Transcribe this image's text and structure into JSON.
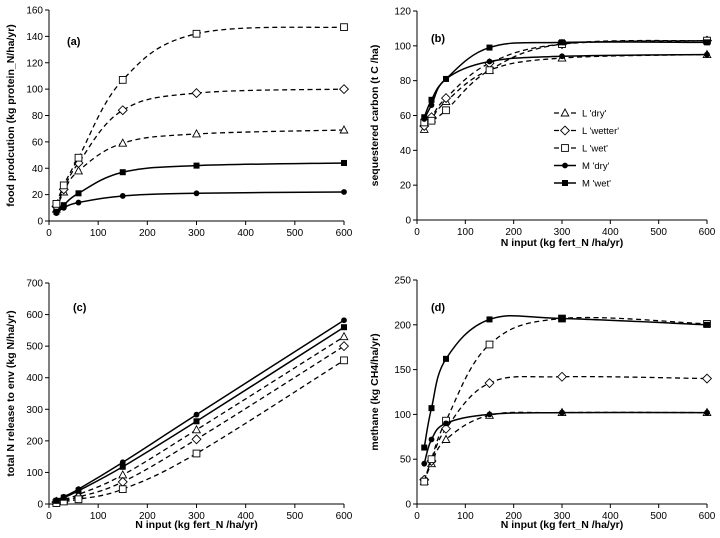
{
  "chart_data": [
    {
      "type": "line",
      "panel_label": "(a)",
      "xlabel": "",
      "ylabel": "food prodcution (kg protein_N/ha/yr)",
      "xlim": [
        0,
        600
      ],
      "ylim": [
        0,
        160
      ],
      "xticks": [
        0,
        100,
        200,
        300,
        400,
        500,
        600
      ],
      "yticks": [
        0,
        20,
        40,
        60,
        80,
        100,
        120,
        140,
        160
      ],
      "x": [
        15,
        30,
        60,
        150,
        300,
        600
      ],
      "series": [
        {
          "name": "",
          "marker": "triangle",
          "dash": true,
          "values": [
            9,
            22,
            38,
            59,
            66,
            69
          ]
        },
        {
          "name": "",
          "marker": "diamond",
          "dash": true,
          "values": [
            11,
            24,
            44,
            84,
            97,
            100
          ]
        },
        {
          "name": "",
          "marker": "square-open",
          "dash": true,
          "values": [
            13,
            27,
            48,
            107,
            142,
            147
          ]
        },
        {
          "name": "",
          "marker": "circle",
          "dash": false,
          "values": [
            6,
            10,
            14,
            19,
            21,
            22
          ]
        },
        {
          "name": "",
          "marker": "square",
          "dash": false,
          "values": [
            7,
            12,
            21,
            37,
            42,
            44
          ]
        }
      ]
    },
    {
      "type": "line",
      "panel_label": "(b)",
      "xlabel": "N input (kg fert_N /ha/yr)",
      "ylabel": "sequestered carbon (t C /ha)",
      "xlim": [
        0,
        600
      ],
      "ylim": [
        0,
        120
      ],
      "xticks": [
        0,
        100,
        200,
        300,
        400,
        500,
        600
      ],
      "yticks": [
        0,
        20,
        40,
        60,
        80,
        100,
        120
      ],
      "x": [
        15,
        30,
        60,
        150,
        300,
        600
      ],
      "legend": {
        "placement": "center-right",
        "entries": [
          "L 'dry'",
          "L 'wetter'",
          "L 'wet'",
          "M 'dry'",
          "M 'wet'"
        ]
      },
      "series": [
        {
          "name": "L 'dry'",
          "marker": "triangle",
          "dash": true,
          "values": [
            52,
            58,
            68,
            86,
            93,
            95
          ]
        },
        {
          "name": "L 'wetter'",
          "marker": "diamond",
          "dash": true,
          "values": [
            54,
            59,
            70,
            90,
            101,
            103
          ]
        },
        {
          "name": "L 'wet'",
          "marker": "square-open",
          "dash": true,
          "values": [
            56,
            57,
            63,
            86,
            101,
            103
          ]
        },
        {
          "name": "M 'dry'",
          "marker": "circle",
          "dash": false,
          "values": [
            58,
            66,
            81,
            91,
            94,
            95
          ]
        },
        {
          "name": "M 'wet'",
          "marker": "square",
          "dash": false,
          "values": [
            59,
            69,
            81,
            99,
            102,
            102
          ]
        }
      ]
    },
    {
      "type": "line",
      "panel_label": "(c)",
      "xlabel": "N input (kg fert_N /ha/yr)",
      "ylabel": "total N release to env (kg N/ha/yr)",
      "xlim": [
        0,
        600
      ],
      "ylim": [
        0,
        700
      ],
      "xticks": [
        0,
        100,
        200,
        300,
        400,
        500,
        600
      ],
      "yticks": [
        0,
        100,
        200,
        300,
        400,
        500,
        600,
        700
      ],
      "x": [
        15,
        30,
        60,
        150,
        300,
        600
      ],
      "series": [
        {
          "name": "",
          "marker": "triangle",
          "dash": true,
          "values": [
            8,
            14,
            30,
            92,
            235,
            530
          ]
        },
        {
          "name": "",
          "marker": "diamond",
          "dash": true,
          "values": [
            6,
            12,
            22,
            70,
            205,
            500
          ]
        },
        {
          "name": "",
          "marker": "square-open",
          "dash": true,
          "values": [
            3,
            8,
            15,
            47,
            160,
            455
          ]
        },
        {
          "name": "",
          "marker": "circle",
          "dash": false,
          "values": [
            12,
            23,
            47,
            132,
            283,
            582
          ]
        },
        {
          "name": "",
          "marker": "square",
          "dash": false,
          "values": [
            10,
            20,
            42,
            118,
            262,
            560
          ]
        }
      ]
    },
    {
      "type": "line",
      "panel_label": "(d)",
      "xlabel": "N input (kg fert_N /ha/yr)",
      "ylabel": "methane (kg CH4/ha/yr)",
      "xlim": [
        0,
        600
      ],
      "ylim": [
        0,
        250
      ],
      "xticks": [
        0,
        100,
        200,
        300,
        400,
        500,
        600
      ],
      "yticks": [
        0,
        50,
        100,
        150,
        200,
        250
      ],
      "x": [
        15,
        30,
        60,
        150,
        300,
        600
      ],
      "series": [
        {
          "name": "",
          "marker": "triangle",
          "dash": true,
          "values": [
            25,
            45,
            72,
            99,
            102,
            102
          ]
        },
        {
          "name": "",
          "marker": "diamond",
          "dash": true,
          "values": [
            27,
            48,
            84,
            135,
            142,
            140
          ]
        },
        {
          "name": "",
          "marker": "square-open",
          "dash": true,
          "values": [
            25,
            50,
            93,
            178,
            207,
            201
          ]
        },
        {
          "name": "",
          "marker": "circle",
          "dash": false,
          "values": [
            45,
            72,
            90,
            100,
            102,
            102
          ]
        },
        {
          "name": "",
          "marker": "square",
          "dash": false,
          "values": [
            63,
            107,
            162,
            206,
            207,
            200
          ]
        }
      ]
    }
  ]
}
